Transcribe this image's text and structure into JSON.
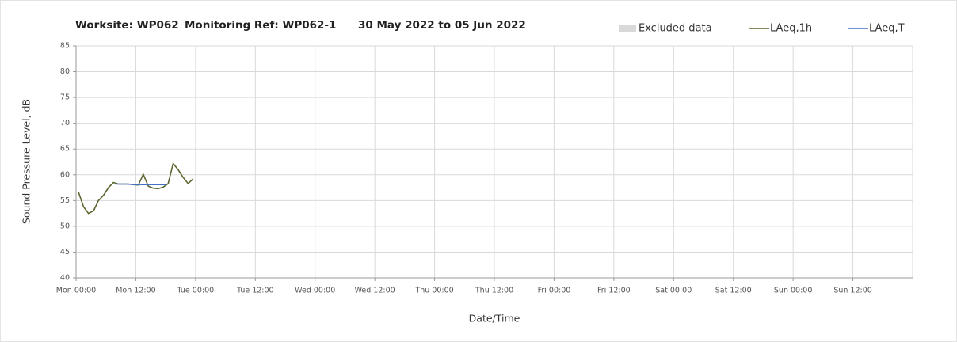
{
  "chart_data": {
    "type": "line",
    "title_parts": [
      "Worksite: WP062",
      "Monitoring Ref: WP062-1",
      "30 May 2022 to 05 Jun 2022"
    ],
    "x_label": "Date/Time",
    "y_label": "Sound Pressure Level, dB",
    "xlim": [
      0,
      168
    ],
    "ylim": [
      40,
      85
    ],
    "xticks": [
      {
        "value": 0,
        "label": "Mon 00:00"
      },
      {
        "value": 12,
        "label": "Mon 12:00"
      },
      {
        "value": 24,
        "label": "Tue 00:00"
      },
      {
        "value": 36,
        "label": "Tue 12:00"
      },
      {
        "value": 48,
        "label": "Wed 00:00"
      },
      {
        "value": 60,
        "label": "Wed 12:00"
      },
      {
        "value": 72,
        "label": "Thu 00:00"
      },
      {
        "value": 84,
        "label": "Thu 12:00"
      },
      {
        "value": 96,
        "label": "Fri 00:00"
      },
      {
        "value": 108,
        "label": "Fri 12:00"
      },
      {
        "value": 120,
        "label": "Sat 00:00"
      },
      {
        "value": 132,
        "label": "Sat 12:00"
      },
      {
        "value": 144,
        "label": "Sun 00:00"
      },
      {
        "value": 156,
        "label": "Sun 12:00"
      }
    ],
    "yticks": [
      40,
      45,
      50,
      55,
      60,
      65,
      70,
      75,
      80,
      85
    ],
    "grid": true,
    "series": [
      {
        "name": "Excluded data",
        "color": "#d9d9d9",
        "x": [],
        "values": []
      },
      {
        "name": "LAeq,1h",
        "color": "#5b6630",
        "x": [
          0.5,
          1.5,
          2.5,
          3.5,
          4.5,
          5.5,
          6.5,
          7.5,
          8.5,
          9.5,
          10.5,
          11.5,
          12.5,
          13.5,
          14.5,
          15.5,
          16.5,
          17.5,
          18.5,
          19.5,
          20.5,
          21.5,
          22.5,
          23.5
        ],
        "values": [
          56.6,
          53.8,
          52.5,
          53.0,
          55.0,
          56.0,
          57.5,
          58.5,
          58.2,
          58.2,
          58.2,
          58.1,
          58.0,
          60.1,
          57.8,
          57.4,
          57.3,
          57.6,
          58.3,
          62.2,
          61.0,
          59.5,
          58.3,
          59.2
        ]
      },
      {
        "name": "LAeq,T",
        "color": "#4472c4",
        "x": [
          8,
          10,
          12,
          14,
          16,
          18
        ],
        "values": [
          58.2,
          58.2,
          58.1,
          58.1,
          58.1,
          58.1
        ]
      }
    ]
  }
}
